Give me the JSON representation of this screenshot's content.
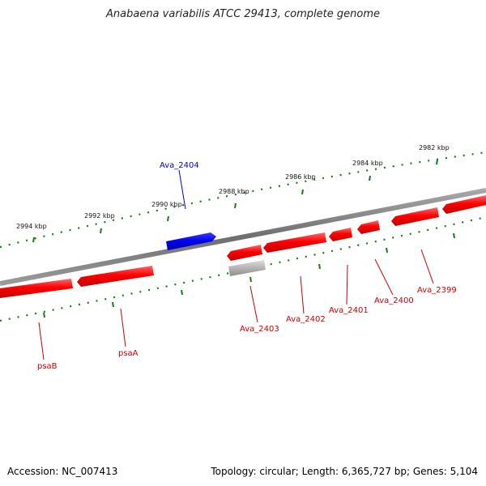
{
  "title": "Anabaena variabilis ATCC 29413, complete genome",
  "footer": {
    "accession": "Accession: NC_007413",
    "summary": "Topology: circular; Length: 6,365,727 bp; Genes: 5,104"
  },
  "colors": {
    "forward_gene": "#ff0000",
    "highlight_gene": "#0000ee",
    "other_gene": "#b0b0b0",
    "backbone": "#7a7a7a",
    "ticks": "#1a7a1a"
  },
  "ticks": [
    "2994 kbp",
    "2992 kbp",
    "2990 kbp",
    "2988 kbp",
    "2986 kbp",
    "2984 kbp",
    "2982 kbp"
  ],
  "genes": {
    "ava_2404": "Ava_2404",
    "ava_2403": "Ava_2403",
    "ava_2402": "Ava_2402",
    "ava_2401": "Ava_2401",
    "ava_2400": "Ava_2400",
    "ava_2399": "Ava_2399",
    "psaB": "psaB",
    "psaA": "psaA"
  }
}
